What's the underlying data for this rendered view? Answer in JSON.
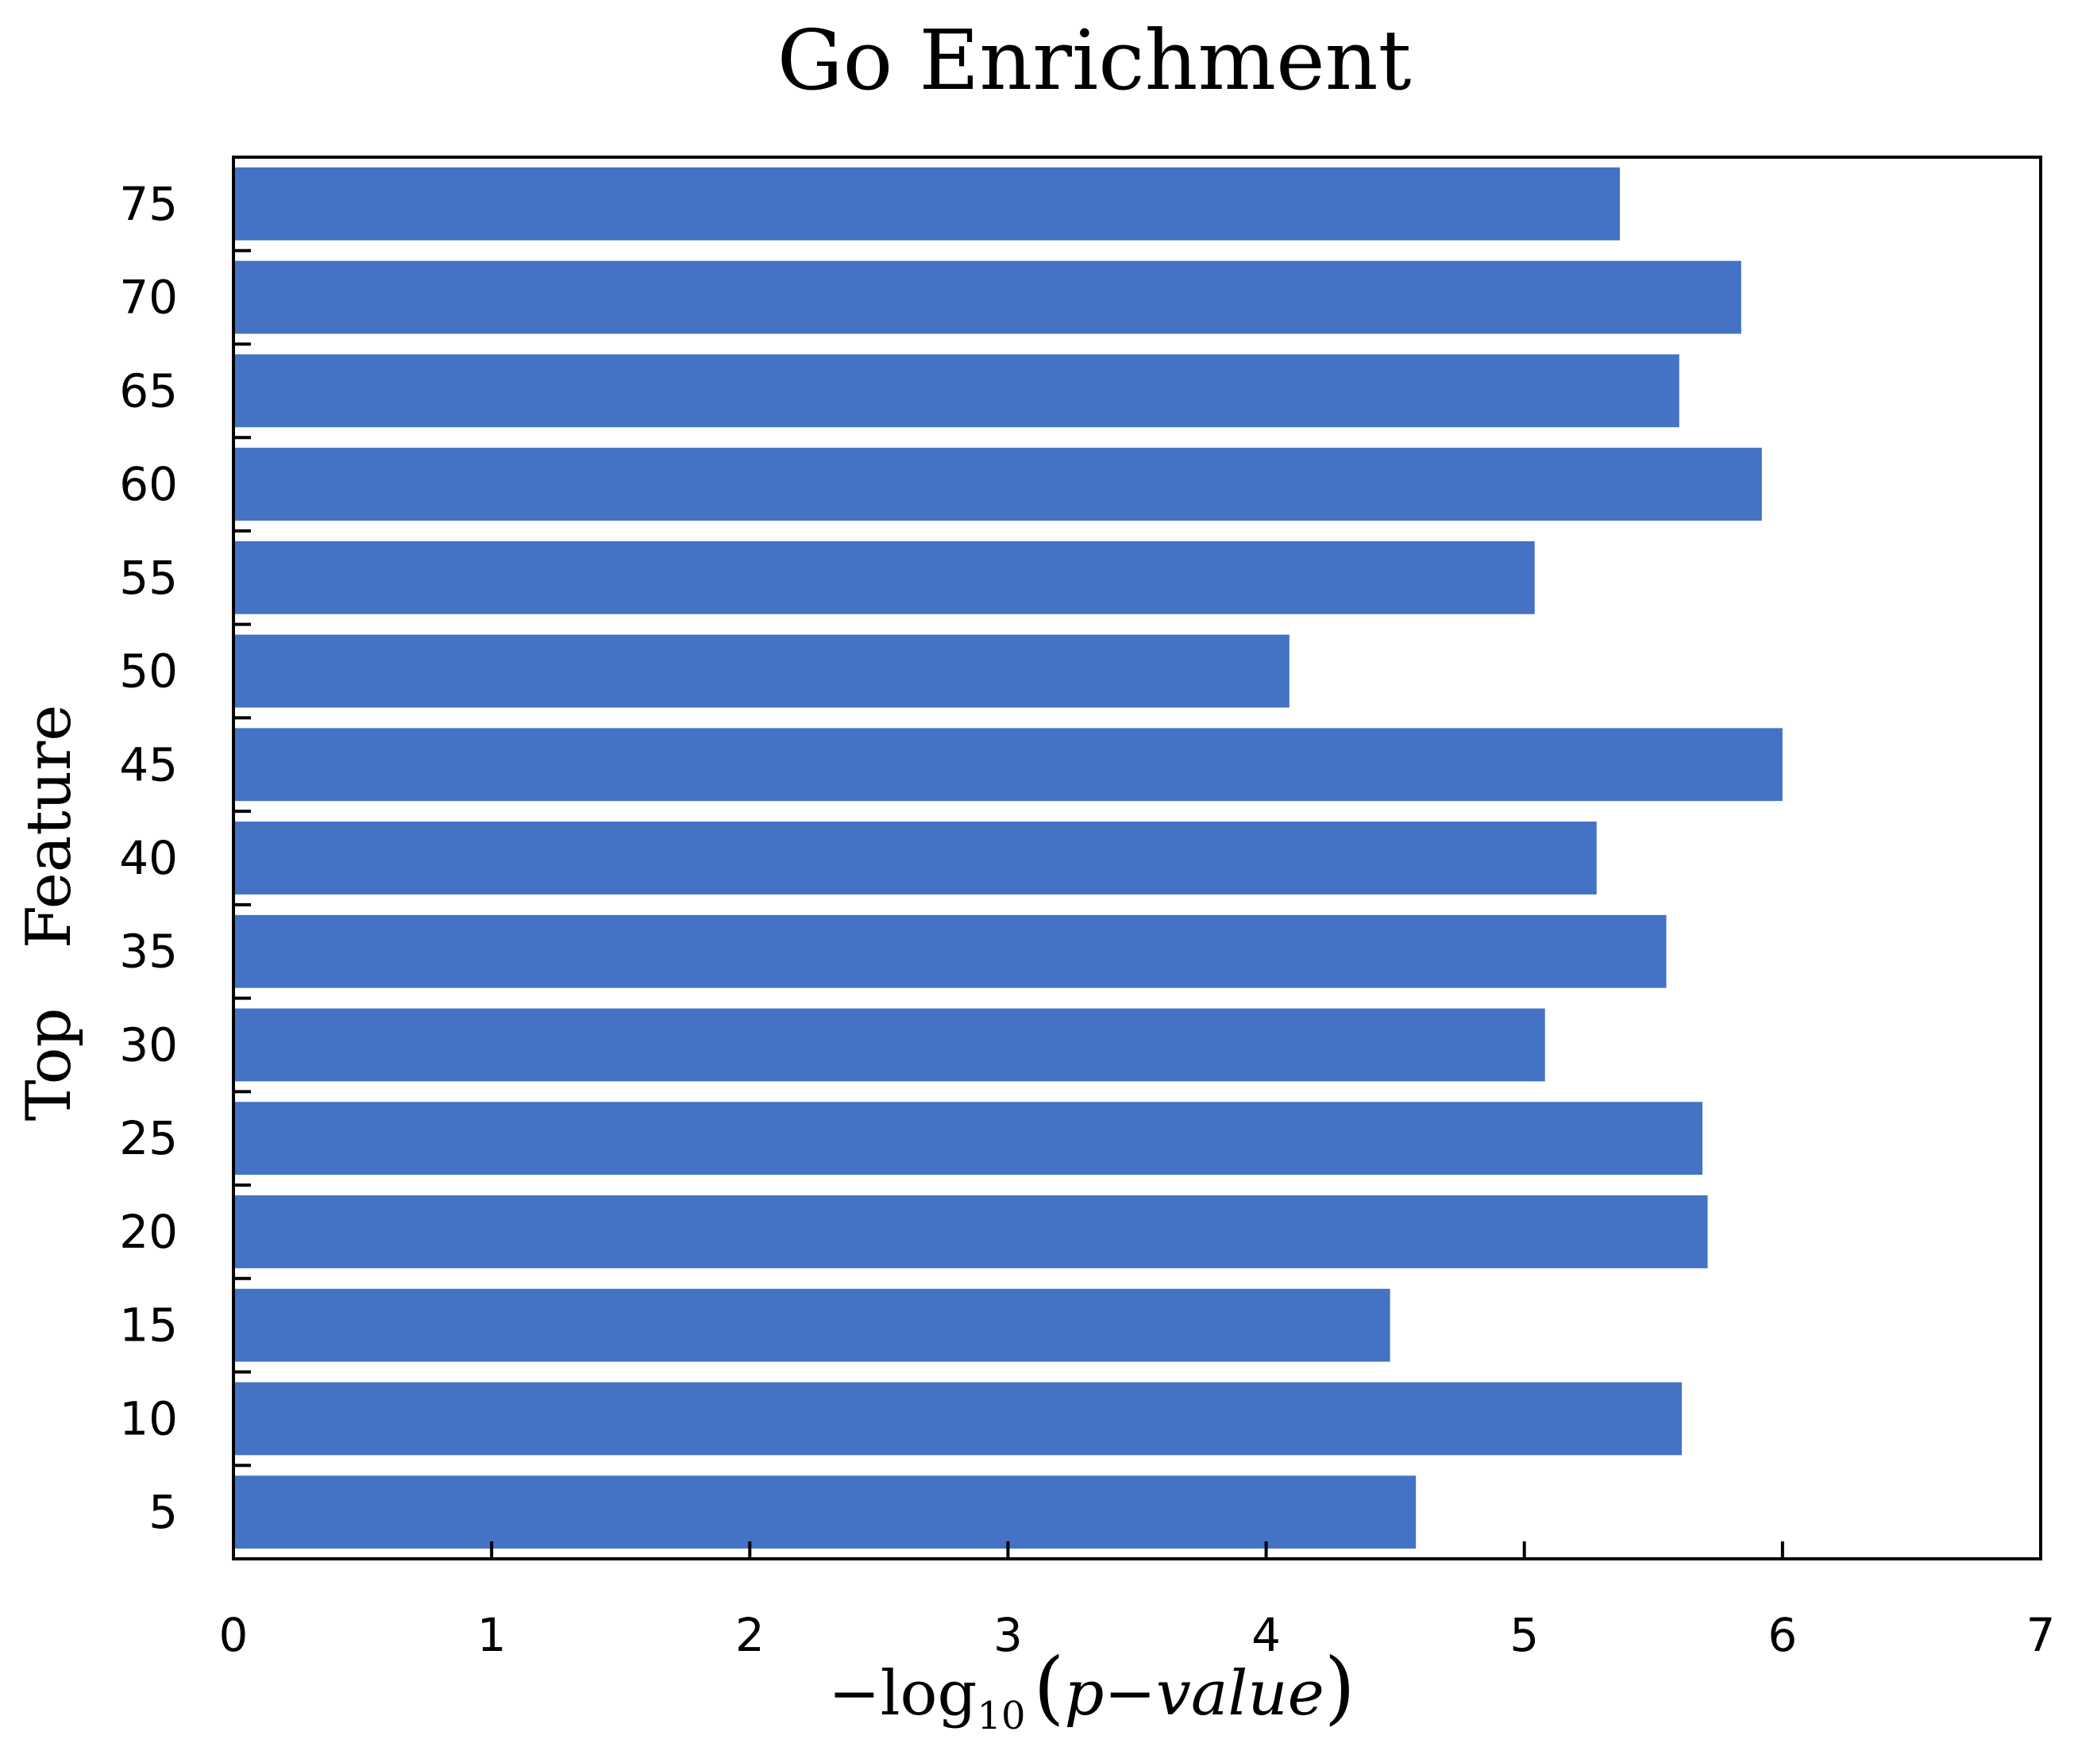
{
  "chart_data": {
    "type": "bar",
    "orientation": "horizontal",
    "title": "Go Enrichment",
    "ylabel": "Top   Feature",
    "xlabel": {
      "minus": "−",
      "log": "log",
      "sub": "10",
      "lparen": "(",
      "p": "p",
      "dash": "−",
      "value": "value",
      "rparen": ")"
    },
    "xlim": [
      0,
      7
    ],
    "xticks": [
      "0",
      "1",
      "2",
      "3",
      "4",
      "5",
      "6",
      "7"
    ],
    "categories": [
      "5",
      "10",
      "15",
      "20",
      "25",
      "30",
      "35",
      "40",
      "45",
      "50",
      "55",
      "60",
      "65",
      "70",
      "75"
    ],
    "values": [
      4.58,
      5.61,
      4.48,
      5.71,
      5.69,
      5.08,
      5.55,
      5.28,
      6.0,
      4.09,
      5.04,
      5.92,
      5.6,
      5.84,
      5.37
    ],
    "bar_color": "#4472c4",
    "grid": false
  }
}
